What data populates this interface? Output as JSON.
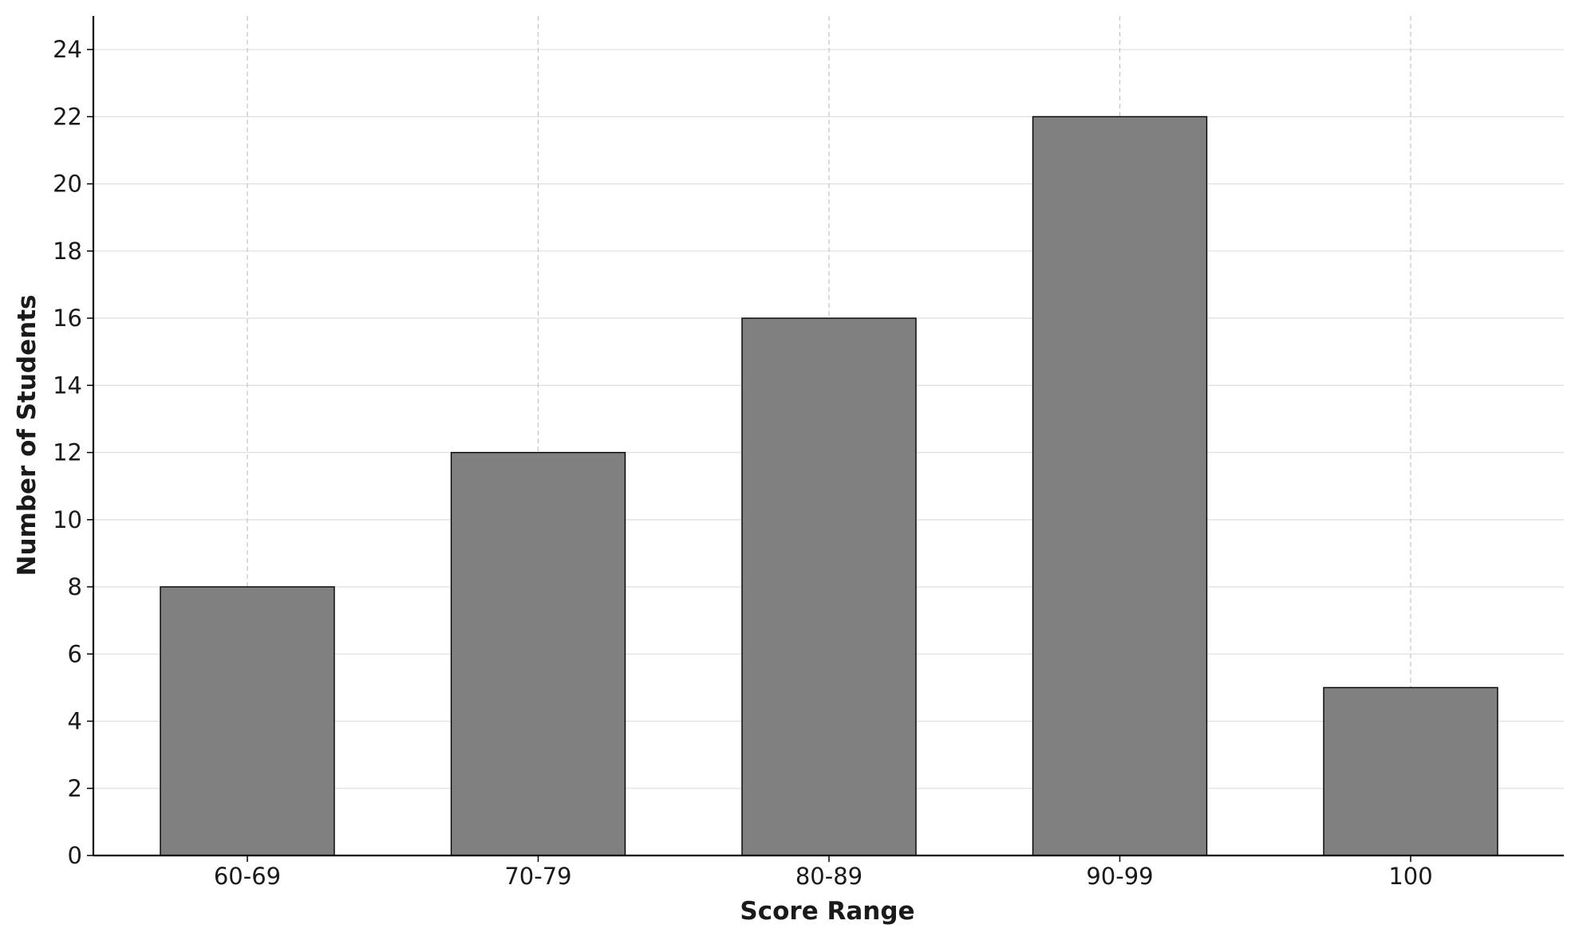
{
  "chart_data": {
    "type": "bar",
    "title": "",
    "xlabel": "Score Range",
    "ylabel": "Number of Students",
    "categories": [
      "60-69",
      "70-79",
      "80-89",
      "90-99",
      "100"
    ],
    "values": [
      8,
      12,
      16,
      22,
      5
    ],
    "ylim": [
      0,
      25
    ],
    "yticks": [
      0,
      2,
      4,
      6,
      8,
      10,
      12,
      14,
      16,
      18,
      20,
      22,
      24
    ],
    "grid": {
      "horizontal": "solid",
      "vertical": "dashed"
    },
    "legend": "none",
    "colors": {
      "bar_fill": "#808080",
      "bar_edge": "#000000",
      "axis": "#000000",
      "grid_h": "#e0e0e0",
      "grid_v": "#c8c8c8"
    }
  }
}
